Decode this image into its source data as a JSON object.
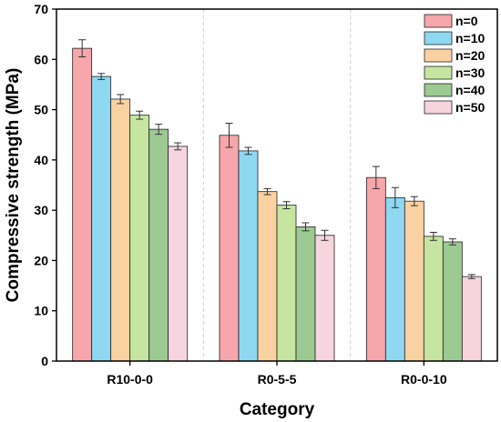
{
  "chart_data": {
    "type": "bar",
    "categories": [
      "R10-0-0",
      "R0-5-5",
      "R0-0-10"
    ],
    "series": [
      {
        "name": "n=0",
        "color": "#f7a6ab",
        "values": [
          62.2,
          44.9,
          36.5
        ],
        "errors": [
          1.7,
          2.4,
          2.2
        ]
      },
      {
        "name": "n=10",
        "color": "#8ed8f2",
        "values": [
          56.6,
          41.8,
          32.5
        ],
        "errors": [
          0.6,
          0.7,
          2.0
        ]
      },
      {
        "name": "n=20",
        "color": "#fad2a1",
        "values": [
          52.1,
          33.7,
          31.8
        ],
        "errors": [
          0.9,
          0.6,
          0.9
        ]
      },
      {
        "name": "n=30",
        "color": "#c6e5a0",
        "values": [
          48.9,
          31.0,
          24.8
        ],
        "errors": [
          0.8,
          0.7,
          0.8
        ]
      },
      {
        "name": "n=40",
        "color": "#9dc993",
        "values": [
          46.1,
          26.7,
          23.7
        ],
        "errors": [
          1.0,
          0.8,
          0.6
        ]
      },
      {
        "name": "n=50",
        "color": "#f7d5de",
        "values": [
          42.7,
          25.0,
          16.8
        ],
        "errors": [
          0.7,
          1.0,
          0.4
        ]
      }
    ],
    "xlabel": "Category",
    "ylabel": "Compressive strength (MPa)",
    "ylim": [
      0,
      70
    ],
    "yticks": [
      "0",
      "10",
      "20",
      "30",
      "40",
      "50",
      "60",
      "70"
    ],
    "grid": "vertical dashed separators between categories",
    "legend": "top-right"
  }
}
